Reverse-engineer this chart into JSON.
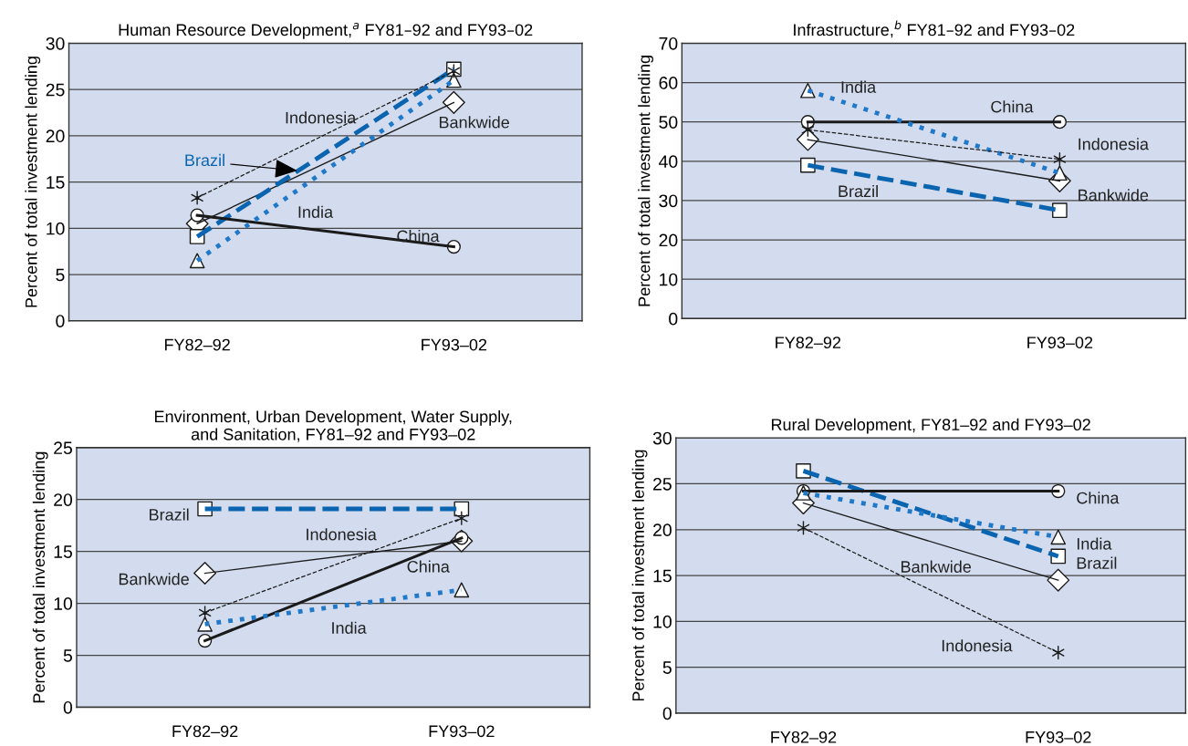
{
  "chart_data": [
    {
      "type": "line",
      "title": "Human Resource Development,$^{a}$ FY81–92 and FY93–02",
      "ylabel": "Percent of total investment lending",
      "categories": [
        "FY82–92",
        "FY93–02"
      ],
      "ylim": [
        0,
        30
      ],
      "yticks": [
        0,
        5,
        10,
        15,
        20,
        25,
        30
      ],
      "grid": "y",
      "series": [
        {
          "name": "Bankwide",
          "color": "#1a1a1a",
          "values": [
            10.5,
            23.6
          ],
          "marker": "diamond",
          "line_style": "solid"
        },
        {
          "name": "Brazil",
          "color": "#0a64b0",
          "values": [
            9.1,
            27.2
          ],
          "marker": "square",
          "line_style": "dashed"
        },
        {
          "name": "China",
          "color": "#1a1a1a",
          "values": [
            11.4,
            8.0
          ],
          "marker": "circle",
          "line_style": "solid"
        },
        {
          "name": "India",
          "color": "#1f78c8",
          "values": [
            6.5,
            26.0
          ],
          "marker": "triangle",
          "line_style": "dotted"
        },
        {
          "name": "Indonesia",
          "color": "#1a1a1a",
          "values": [
            13.3,
            27.0
          ],
          "marker": "cross",
          "line_style": "dashed"
        }
      ]
    },
    {
      "type": "line",
      "title": "Infrastructure,$^{b}$ FY81–92 and FY93–02",
      "ylabel": "Percent of total investment lending",
      "categories": [
        "FY82–92",
        "FY93–02"
      ],
      "ylim": [
        0,
        70
      ],
      "yticks": [
        0,
        10,
        20,
        30,
        40,
        50,
        60,
        70
      ],
      "grid": "y",
      "series": [
        {
          "name": "Bankwide",
          "color": "#1a1a1a",
          "values": [
            45.5,
            35.0
          ],
          "marker": "diamond",
          "line_style": "solid"
        },
        {
          "name": "Brazil",
          "color": "#0a64b0",
          "values": [
            39.0,
            27.5
          ],
          "marker": "square",
          "line_style": "dashed"
        },
        {
          "name": "China",
          "color": "#1a1a1a",
          "values": [
            50.0,
            50.0
          ],
          "marker": "circle",
          "line_style": "solid"
        },
        {
          "name": "India",
          "color": "#1f78c8",
          "values": [
            58.0,
            37.0
          ],
          "marker": "triangle",
          "line_style": "dotted"
        },
        {
          "name": "Indonesia",
          "color": "#1a1a1a",
          "values": [
            48.0,
            40.5
          ],
          "marker": "cross",
          "line_style": "dashed"
        }
      ]
    },
    {
      "type": "line",
      "title": "Environment, Urban Development, Water Supply,\nand Sanitation, FY81–92 and FY93–02",
      "ylabel": "Percent of total investment lending",
      "categories": [
        "FY82–92",
        "FY93–02"
      ],
      "ylim": [
        0,
        25
      ],
      "yticks": [
        0,
        5,
        10,
        15,
        20,
        25
      ],
      "grid": "y",
      "series": [
        {
          "name": "Bankwide",
          "color": "#1a1a1a",
          "values": [
            12.9,
            16.0
          ],
          "marker": "diamond",
          "line_style": "solid"
        },
        {
          "name": "Brazil",
          "color": "#0a64b0",
          "values": [
            19.1,
            19.1
          ],
          "marker": "square",
          "line_style": "dashed"
        },
        {
          "name": "China",
          "color": "#1a1a1a",
          "values": [
            6.4,
            16.3
          ],
          "marker": "circle",
          "line_style": "solid"
        },
        {
          "name": "India",
          "color": "#1f78c8",
          "values": [
            8.0,
            11.3
          ],
          "marker": "triangle",
          "line_style": "dotted"
        },
        {
          "name": "Indonesia",
          "color": "#1a1a1a",
          "values": [
            9.1,
            18.2
          ],
          "marker": "cross",
          "line_style": "dashed"
        }
      ]
    },
    {
      "type": "line",
      "title": "Rural Development, FY81–92 and FY93–02",
      "ylabel": "Percent of total investment lending",
      "categories": [
        "FY82–92",
        "FY93–02"
      ],
      "ylim": [
        0,
        30
      ],
      "yticks": [
        0,
        5,
        10,
        15,
        20,
        25,
        30
      ],
      "grid": "y",
      "series": [
        {
          "name": "Bankwide",
          "color": "#1a1a1a",
          "values": [
            22.9,
            14.5
          ],
          "marker": "diamond",
          "line_style": "solid"
        },
        {
          "name": "Brazil",
          "color": "#0a64b0",
          "values": [
            26.4,
            17.1
          ],
          "marker": "square",
          "line_style": "dashed"
        },
        {
          "name": "China",
          "color": "#1a1a1a",
          "values": [
            24.2,
            24.2
          ],
          "marker": "circle",
          "line_style": "solid"
        },
        {
          "name": "India",
          "color": "#1f78c8",
          "values": [
            24.0,
            19.2
          ],
          "marker": "triangle",
          "line_style": "dotted"
        },
        {
          "name": "Indonesia",
          "color": "#1a1a1a",
          "values": [
            20.2,
            6.6
          ],
          "marker": "cross",
          "line_style": "dashed"
        }
      ]
    }
  ]
}
